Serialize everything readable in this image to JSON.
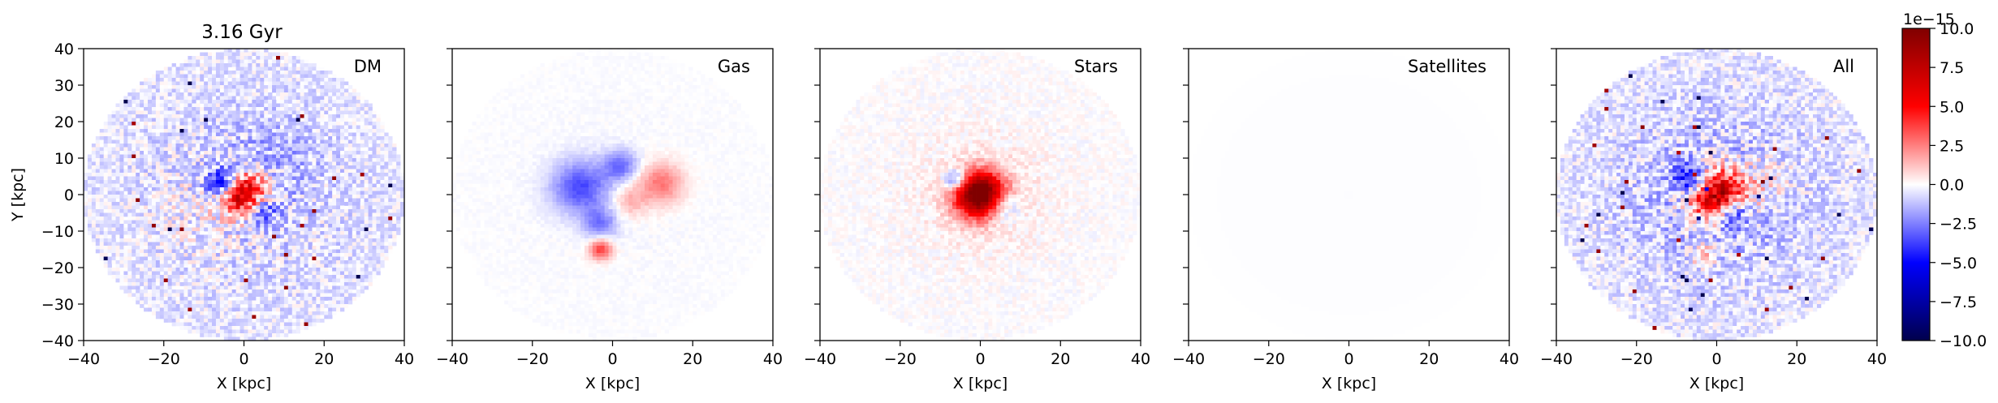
{
  "chart_data": {
    "type": "heatmap",
    "title": "3.16 Gyr",
    "panels": [
      {
        "label": "DM",
        "blobs": [
          {
            "x": 0,
            "y": 0,
            "sigma": 4,
            "amp": 9
          },
          {
            "x": -5,
            "y": 3,
            "sigma": 3,
            "amp": -5
          },
          {
            "x": 4,
            "y": -4,
            "sigma": 3,
            "amp": -4
          },
          {
            "x": -12,
            "y": -5,
            "sigma": 8,
            "amp": 0.6
          },
          {
            "x": 8,
            "y": 10,
            "sigma": 8,
            "amp": -0.8
          }
        ],
        "background": -0.9,
        "noise": 2.2,
        "disk_radius": 40
      },
      {
        "label": "Gas",
        "blobs": [
          {
            "x": -8,
            "y": 2,
            "sigma": 5,
            "amp": -3.5
          },
          {
            "x": 2,
            "y": 8,
            "sigma": 3,
            "amp": -2.8
          },
          {
            "x": -3,
            "y": -8,
            "sigma": 3,
            "amp": -2.5
          },
          {
            "x": 12,
            "y": 3,
            "sigma": 4,
            "amp": 2.8
          },
          {
            "x": -3,
            "y": -15,
            "sigma": 2,
            "amp": 4
          },
          {
            "x": 4,
            "y": -2,
            "sigma": 3,
            "amp": 1.5
          }
        ],
        "background": -0.1,
        "noise": 0.3,
        "disk_radius": 40
      },
      {
        "label": "Stars",
        "blobs": [
          {
            "x": 0,
            "y": 0,
            "sigma": 4,
            "amp": 12
          },
          {
            "x": -6,
            "y": 4,
            "sigma": 2,
            "amp": -4
          },
          {
            "x": 5,
            "y": -3,
            "sigma": 3,
            "amp": -3
          },
          {
            "x": 0,
            "y": 0,
            "sigma": 10,
            "amp": 0.8
          }
        ],
        "background": 0,
        "noise": 0.8,
        "disk_radius": 40
      },
      {
        "label": "Satellites",
        "blobs": [],
        "background": -0.05,
        "noise": 0,
        "disk_radius": 40
      },
      {
        "label": "All",
        "blobs": [
          {
            "x": 0,
            "y": 0,
            "sigma": 5,
            "amp": 10
          },
          {
            "x": -6,
            "y": 4,
            "sigma": 3,
            "amp": -5
          },
          {
            "x": 4,
            "y": -5,
            "sigma": 3,
            "amp": -4
          },
          {
            "x": -3,
            "y": -17,
            "sigma": 2,
            "amp": 3
          },
          {
            "x": 12,
            "y": 3,
            "sigma": 5,
            "amp": 1.5
          },
          {
            "x": 0,
            "y": 0,
            "sigma": 12,
            "amp": -1.2
          }
        ],
        "background": -0.9,
        "noise": 2.4,
        "disk_radius": 40
      }
    ],
    "xlabel": "X [kpc]",
    "ylabel": "Y [kpc]",
    "xlim": [
      -40,
      40
    ],
    "ylim": [
      -40,
      40
    ],
    "xticks": [
      -40,
      -20,
      0,
      20,
      40
    ],
    "yticks": [
      -40,
      -30,
      -20,
      -10,
      0,
      10,
      20,
      30,
      40
    ],
    "xtick_labels": [
      "−40",
      "−20",
      "0",
      "20",
      "40"
    ],
    "ytick_labels": [
      "−40",
      "−30",
      "−20",
      "−10",
      "0",
      "10",
      "20",
      "30",
      "40"
    ],
    "grid": false,
    "cells_per_axis": 80,
    "colormap": "seismic",
    "colormap_colors": [
      "#00004c",
      "#0000ff",
      "#ffffff",
      "#ff0000",
      "#800000"
    ],
    "colorbar": {
      "range": [
        -10,
        10
      ],
      "exponent_label": "1e−15",
      "ticks": [
        -10,
        -7.5,
        -5,
        -2.5,
        0,
        2.5,
        5,
        7.5,
        10
      ],
      "tick_labels": [
        "−10.0",
        "−7.5",
        "−5.0",
        "−2.5",
        "0.0",
        "2.5",
        "5.0",
        "7.5",
        "10.0"
      ]
    }
  }
}
